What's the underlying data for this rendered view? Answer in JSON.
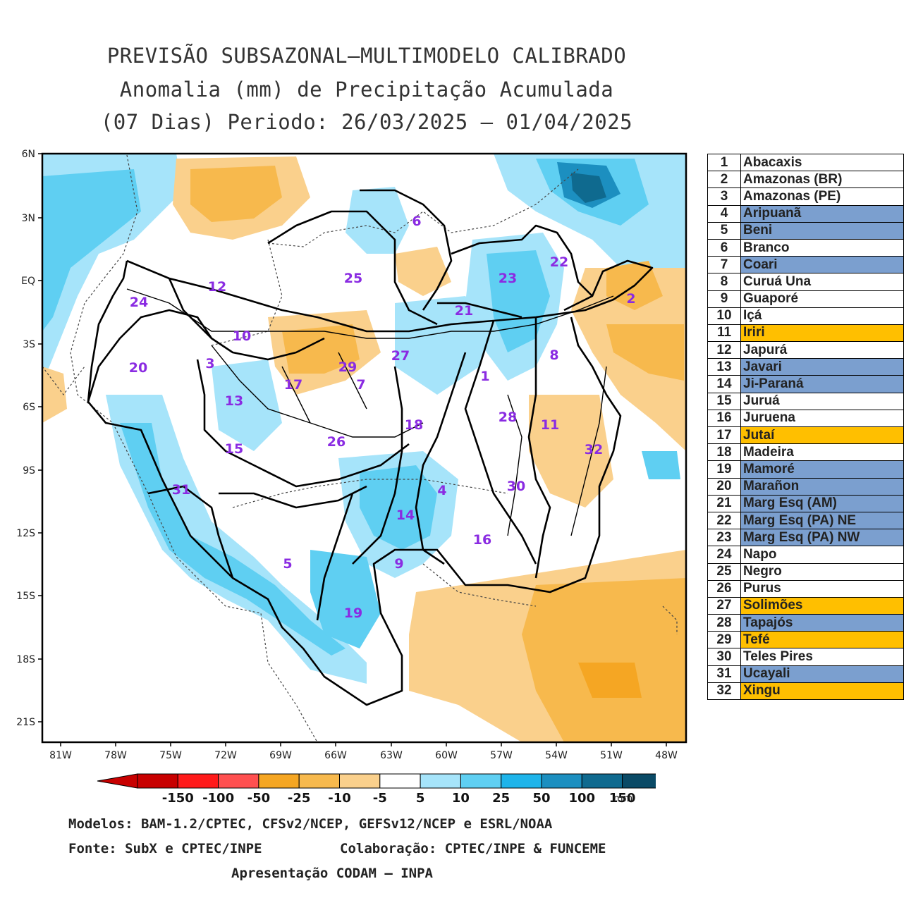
{
  "title": {
    "line1": "PREVISÃO SUBSAZONAL–MULTIMODELO CALIBRADO",
    "line2": "Anomalia (mm) de Precipitação Acumulada",
    "line3": "(07 Dias) Periodo: 26/03/2025 – 01/04/2025"
  },
  "axes": {
    "lat_labels": [
      "6N",
      "3N",
      "EQ",
      "3S",
      "6S",
      "9S",
      "12S",
      "15S",
      "18S",
      "21S"
    ],
    "lon_labels": [
      "81W",
      "78W",
      "75W",
      "72W",
      "69W",
      "66W",
      "63W",
      "60W",
      "57W",
      "54W",
      "51W",
      "48W"
    ]
  },
  "basin_numbers": [
    "1",
    "2",
    "3",
    "4",
    "5",
    "6",
    "7",
    "8",
    "9",
    "10",
    "11",
    "12",
    "13",
    "14",
    "15",
    "16",
    "17",
    "18",
    "19",
    "20",
    "21",
    "22",
    "23",
    "24",
    "25",
    "26",
    "27",
    "28",
    "29",
    "30",
    "31",
    "32"
  ],
  "legend": [
    {
      "num": "1",
      "name": "Abacaxis",
      "status": "neutral"
    },
    {
      "num": "2",
      "name": "Amazonas (BR)",
      "status": "neutral"
    },
    {
      "num": "3",
      "name": "Amazonas (PE)",
      "status": "neutral"
    },
    {
      "num": "4",
      "name": "Aripuanã",
      "status": "wet"
    },
    {
      "num": "5",
      "name": "Beni",
      "status": "wet"
    },
    {
      "num": "6",
      "name": "Branco",
      "status": "neutral"
    },
    {
      "num": "7",
      "name": "Coari",
      "status": "wet"
    },
    {
      "num": "8",
      "name": "Curuá Una",
      "status": "neutral"
    },
    {
      "num": "9",
      "name": "Guaporé",
      "status": "neutral"
    },
    {
      "num": "10",
      "name": "Içá",
      "status": "neutral"
    },
    {
      "num": "11",
      "name": "Iriri",
      "status": "dry"
    },
    {
      "num": "12",
      "name": "Japurá",
      "status": "neutral"
    },
    {
      "num": "13",
      "name": "Javari",
      "status": "wet"
    },
    {
      "num": "14",
      "name": "Ji-Paraná",
      "status": "wet"
    },
    {
      "num": "15",
      "name": "Juruá",
      "status": "neutral"
    },
    {
      "num": "16",
      "name": "Juruena",
      "status": "neutral"
    },
    {
      "num": "17",
      "name": "Jutaí",
      "status": "dry"
    },
    {
      "num": "18",
      "name": "Madeira",
      "status": "neutral"
    },
    {
      "num": "19",
      "name": "Mamoré",
      "status": "wet"
    },
    {
      "num": "20",
      "name": "Marañon",
      "status": "wet"
    },
    {
      "num": "21",
      "name": "Marg Esq (AM)",
      "status": "wet"
    },
    {
      "num": "22",
      "name": "Marg Esq (PA) NE",
      "status": "wet"
    },
    {
      "num": "23",
      "name": "Marg Esq (PA) NW",
      "status": "wet"
    },
    {
      "num": "24",
      "name": "Napo",
      "status": "neutral"
    },
    {
      "num": "25",
      "name": "Negro",
      "status": "neutral"
    },
    {
      "num": "26",
      "name": "Purus",
      "status": "neutral"
    },
    {
      "num": "27",
      "name": "Solimões",
      "status": "dry"
    },
    {
      "num": "28",
      "name": "Tapajós",
      "status": "wet"
    },
    {
      "num": "29",
      "name": "Tefé",
      "status": "dry"
    },
    {
      "num": "30",
      "name": "Teles Pires",
      "status": "neutral"
    },
    {
      "num": "31",
      "name": "Ucayali",
      "status": "wet"
    },
    {
      "num": "32",
      "name": "Xingu",
      "status": "dry"
    }
  ],
  "status_colors": {
    "neutral": "#ffffff",
    "wet": "#7b9fcf",
    "dry": "#ffbf00"
  },
  "colorbar": {
    "labels": [
      "-150",
      "-100",
      "-50",
      "-25",
      "-10",
      "-5",
      "5",
      "10",
      "25",
      "50",
      "100",
      "150"
    ],
    "unit": "mm",
    "colors": [
      "#c80000",
      "#ff1a1a",
      "#ff5050",
      "#f5a623",
      "#f7b94d",
      "#fad08c",
      "#ffffff",
      "#a6e4fa",
      "#5fcff2",
      "#1eb4ea",
      "#1c8fc0",
      "#0f6a8f",
      "#0a4a66"
    ]
  },
  "footer": {
    "models": "Modelos: BAM-1.2/CPTEC, CFSv2/NCEP, GEFSv12/NCEP e ESRL/NOAA",
    "source": "Fonte: SubX e CPTEC/INPE",
    "collab": "Colaboração: CPTEC/INPE & FUNCEME",
    "presentation": "Apresentação CODAM – INPA"
  }
}
